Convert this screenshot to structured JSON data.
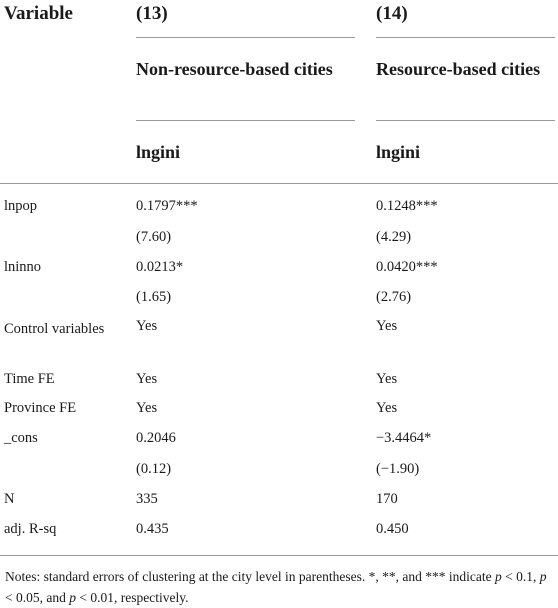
{
  "table": {
    "header": {
      "variable": "Variable",
      "col13_num": "(13)",
      "col14_num": "(14)",
      "col13_title": "Non-resource-based cities",
      "col14_title": "Resource-based cities",
      "col13_dep": "lngini",
      "col14_dep": "lngini"
    },
    "rows": [
      {
        "label": "lnpop",
        "c13": "0.1797***",
        "c14": "0.1248***"
      },
      {
        "label": "",
        "c13": "(7.60)",
        "c14": "(4.29)"
      },
      {
        "label": "lninno",
        "c13": "0.0213*",
        "c14": "0.0420***"
      },
      {
        "label": "",
        "c13": "(1.65)",
        "c14": "(2.76)"
      },
      {
        "label": "Control variables",
        "c13": "Yes",
        "c14": "Yes"
      },
      {
        "label": "Time FE",
        "c13": "Yes",
        "c14": "Yes"
      },
      {
        "label": "Province FE",
        "c13": "Yes",
        "c14": "Yes"
      },
      {
        "label": "_cons",
        "c13": "0.2046",
        "c14": "−3.4464*"
      },
      {
        "label": "",
        "c13": "(0.12)",
        "c14": "(−1.90)"
      },
      {
        "label": "N",
        "c13": "335",
        "c14": "170"
      },
      {
        "label": "adj. R-sq",
        "c13": "0.435",
        "c14": "0.450"
      }
    ]
  },
  "notes": {
    "prefix": "Notes: standard errors of clustering at the city level in parentheses. *, **, and *** indicate ",
    "p1": "p",
    "t1": " < 0.1, ",
    "p2": "p",
    "t2": " < 0.05, and ",
    "p3": "p",
    "t3": " < 0.01, respectively."
  }
}
